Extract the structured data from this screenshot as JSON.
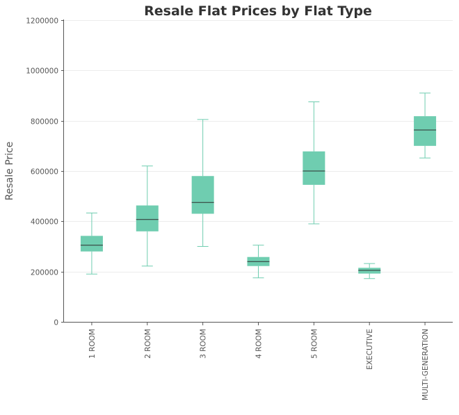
{
  "chart_data": {
    "type": "box",
    "title": "Resale Flat Prices by Flat Type",
    "xlabel": "",
    "ylabel": "Resale Price",
    "ylim": [
      0,
      1200000
    ],
    "yticks": [
      "0",
      "200000",
      "400000",
      "600000",
      "800000",
      "1000000",
      "1200000"
    ],
    "grid": true,
    "accent_color": "#6fcdb0",
    "median_color": "#2e2e2e",
    "categories": [
      "1 ROOM",
      "2 ROOM",
      "3 ROOM",
      "4 ROOM",
      "5 ROOM",
      "EXECUTIVE",
      "MULTI-GENERATION"
    ],
    "boxes": [
      {
        "min": 190000,
        "q1": 280000,
        "median": 305000,
        "q3": 342000,
        "max": 433000
      },
      {
        "min": 222000,
        "q1": 360000,
        "median": 407000,
        "q3": 463000,
        "max": 620000
      },
      {
        "min": 300000,
        "q1": 430000,
        "median": 475000,
        "q3": 580000,
        "max": 805000
      },
      {
        "min": 175000,
        "q1": 222000,
        "median": 240000,
        "q3": 258000,
        "max": 305000
      },
      {
        "min": 390000,
        "q1": 545000,
        "median": 600000,
        "q3": 678000,
        "max": 875000
      },
      {
        "min": 172000,
        "q1": 192000,
        "median": 205000,
        "q3": 215000,
        "max": 232000
      },
      {
        "min": 652000,
        "q1": 700000,
        "median": 763000,
        "q3": 818000,
        "max": 910000
      }
    ]
  }
}
